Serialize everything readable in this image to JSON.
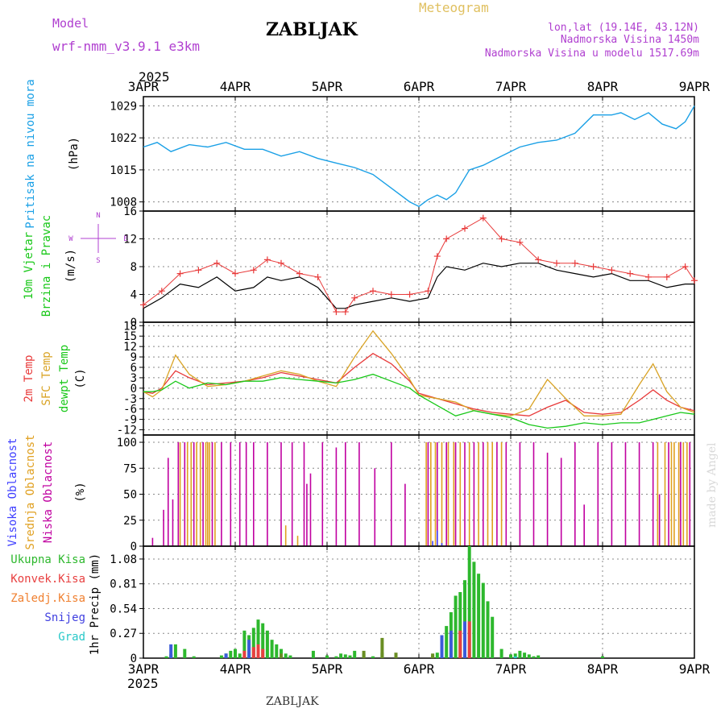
{
  "header": {
    "model_label": "Model",
    "model_value": "wrf-nmm_v3.9.1 e3km",
    "station": "ZABLJAK",
    "meteogram": "Meteogram",
    "lonlat": "lon,lat (19.14E, 43.12N)",
    "altitude": "Nadmorska Visina 1450m",
    "model_altitude": "Nadmorska Visina u modelu 1517.69m",
    "year_top": "2025",
    "year_bottom": "2025",
    "footer_station": "ZABLJAK",
    "watermark": "made by Angel"
  },
  "colors": {
    "pressure": "#1aa0e6",
    "temp2m": "#e83a3a",
    "sfc": "#d9a325",
    "dew": "#19c819",
    "violet": "#b040d0",
    "high": "#4040ff",
    "mid": "#e0a020",
    "low": "#c000a0",
    "grid": "#888888"
  },
  "chart_data": [
    {
      "type": "line",
      "name": "pressure",
      "ylabel_lines": [
        "Pritisak na nivou mora"
      ],
      "unit": "(hPa)",
      "x_labels": [
        "3APR",
        "4APR",
        "5APR",
        "6APR",
        "7APR",
        "8APR",
        "9APR"
      ],
      "yticks": [
        1008,
        1015,
        1022,
        1029
      ],
      "ylim": [
        1006,
        1031
      ],
      "x_days": [
        0,
        0.15,
        0.3,
        0.5,
        0.7,
        0.9,
        1.1,
        1.3,
        1.5,
        1.7,
        1.9,
        2.1,
        2.3,
        2.5,
        2.7,
        2.9,
        3.0,
        3.1,
        3.2,
        3.3,
        3.4,
        3.55,
        3.7,
        3.9,
        4.1,
        4.3,
        4.5,
        4.7,
        4.9,
        5.1,
        5.2,
        5.35,
        5.5,
        5.65,
        5.8,
        5.9,
        6.0
      ],
      "values": [
        1020.0,
        1021.0,
        1019.0,
        1020.5,
        1020.0,
        1021.0,
        1019.5,
        1019.5,
        1018.0,
        1019.0,
        1017.5,
        1016.5,
        1015.5,
        1014.0,
        1011.0,
        1008.0,
        1007.0,
        1008.5,
        1009.5,
        1008.5,
        1010.0,
        1015.0,
        1016.0,
        1018.0,
        1020.0,
        1021.0,
        1021.5,
        1023.0,
        1027.0,
        1027.0,
        1027.5,
        1026.0,
        1027.5,
        1025.0,
        1024.0,
        1025.5,
        1029.0
      ]
    },
    {
      "type": "line",
      "name": "wind",
      "ylabel_lines": [
        "10m Vjetar",
        "Brzina i Pravac"
      ],
      "unit": "(m/s)",
      "yticks": [
        0,
        4,
        8,
        12,
        16
      ],
      "ylim": [
        0,
        16
      ],
      "compass": {
        "n": "N",
        "e": "E",
        "s": "S",
        "w": "W"
      },
      "series": [
        {
          "name": "wind_speed",
          "x_days": [
            0,
            0.2,
            0.4,
            0.6,
            0.8,
            1.0,
            1.2,
            1.35,
            1.5,
            1.7,
            1.9,
            2.1,
            2.2,
            2.3,
            2.5,
            2.7,
            2.9,
            3.1,
            3.2,
            3.3,
            3.5,
            3.7,
            3.9,
            4.1,
            4.3,
            4.5,
            4.7,
            4.9,
            5.1,
            5.3,
            5.5,
            5.7,
            5.9,
            6.0
          ],
          "values": [
            2.0,
            3.5,
            5.5,
            5.0,
            6.5,
            4.5,
            5.0,
            6.5,
            6.0,
            6.5,
            5.0,
            2.0,
            2.0,
            2.5,
            3.0,
            3.5,
            3.0,
            3.5,
            6.5,
            8.0,
            7.5,
            8.5,
            8.0,
            8.5,
            8.5,
            7.5,
            7.0,
            6.5,
            7.0,
            6.0,
            6.0,
            5.0,
            5.5,
            5.5
          ]
        },
        {
          "name": "wind_gust",
          "x_days": [
            0,
            0.2,
            0.4,
            0.6,
            0.8,
            1.0,
            1.2,
            1.35,
            1.5,
            1.7,
            1.9,
            2.1,
            2.2,
            2.3,
            2.5,
            2.7,
            2.9,
            3.1,
            3.2,
            3.3,
            3.5,
            3.7,
            3.9,
            4.1,
            4.3,
            4.5,
            4.7,
            4.9,
            5.1,
            5.3,
            5.5,
            5.7,
            5.9,
            6.0
          ],
          "values": [
            2.5,
            4.5,
            7.0,
            7.5,
            8.5,
            7.0,
            7.5,
            9.0,
            8.5,
            7.0,
            6.5,
            1.5,
            1.5,
            3.5,
            4.5,
            4.0,
            4.0,
            4.5,
            9.5,
            12.0,
            13.5,
            15.0,
            12.0,
            11.5,
            9.0,
            8.5,
            8.5,
            8.0,
            7.5,
            7.0,
            6.5,
            6.5,
            8.0,
            6.0
          ]
        }
      ]
    },
    {
      "type": "line",
      "name": "temperature",
      "ylabel_lines": [
        "2m Temp",
        "SFC Temp",
        "dewpt Temp"
      ],
      "unit": "(C)",
      "yticks": [
        -12,
        -9,
        -6,
        -3,
        0,
        3,
        6,
        9,
        12,
        15,
        18
      ],
      "ylim": [
        -13.5,
        19
      ],
      "series": [
        {
          "name": "2m",
          "x_days": [
            0,
            0.1,
            0.2,
            0.35,
            0.5,
            0.7,
            0.9,
            1.1,
            1.3,
            1.5,
            1.7,
            1.9,
            2.1,
            2.3,
            2.5,
            2.7,
            2.9,
            3.0,
            3.2,
            3.4,
            3.6,
            3.8,
            4.0,
            4.2,
            4.4,
            4.6,
            4.8,
            5.0,
            5.2,
            5.4,
            5.55,
            5.7,
            5.85,
            6.0
          ],
          "values": [
            -1.0,
            -1.5,
            0.0,
            5.0,
            3.0,
            1.0,
            1.5,
            2.0,
            3.0,
            4.5,
            3.5,
            2.5,
            1.5,
            6.0,
            10.0,
            7.0,
            2.0,
            -1.5,
            -3.0,
            -4.5,
            -6.0,
            -7.0,
            -7.5,
            -8.0,
            -5.5,
            -3.5,
            -7.0,
            -7.5,
            -7.0,
            -3.5,
            -0.5,
            -3.5,
            -5.5,
            -6.5
          ]
        },
        {
          "name": "sfc",
          "x_days": [
            0,
            0.1,
            0.2,
            0.35,
            0.5,
            0.7,
            0.9,
            1.1,
            1.3,
            1.5,
            1.7,
            1.9,
            2.1,
            2.3,
            2.5,
            2.7,
            2.9,
            3.0,
            3.2,
            3.4,
            3.6,
            3.8,
            4.0,
            4.2,
            4.4,
            4.6,
            4.8,
            5.0,
            5.2,
            5.4,
            5.55,
            5.7,
            5.85,
            6.0
          ],
          "values": [
            -1.0,
            -2.5,
            -0.5,
            9.5,
            4.0,
            0.5,
            1.0,
            2.0,
            3.5,
            5.0,
            4.0,
            2.0,
            0.5,
            9.0,
            16.5,
            10.0,
            2.5,
            -2.0,
            -3.0,
            -4.0,
            -6.5,
            -7.5,
            -8.0,
            -6.0,
            2.5,
            -3.0,
            -8.0,
            -8.0,
            -7.5,
            1.0,
            7.0,
            -1.0,
            -5.5,
            -7.0
          ]
        },
        {
          "name": "dew",
          "x_days": [
            0,
            0.1,
            0.2,
            0.35,
            0.5,
            0.7,
            0.9,
            1.1,
            1.3,
            1.5,
            1.7,
            1.9,
            2.1,
            2.3,
            2.5,
            2.7,
            2.9,
            3.0,
            3.2,
            3.4,
            3.6,
            3.8,
            4.0,
            4.2,
            4.4,
            4.6,
            4.8,
            5.0,
            5.2,
            5.4,
            5.55,
            5.7,
            5.85,
            6.0
          ],
          "values": [
            -1.0,
            -1.0,
            -0.5,
            2.0,
            0.0,
            1.5,
            1.0,
            2.0,
            2.0,
            3.0,
            2.5,
            2.0,
            1.5,
            2.5,
            4.0,
            2.0,
            0.0,
            -2.0,
            -5.0,
            -8.0,
            -6.5,
            -7.5,
            -8.5,
            -10.5,
            -11.5,
            -11.0,
            -10.0,
            -10.5,
            -10.0,
            -10.0,
            -9.0,
            -8.0,
            -7.0,
            -7.5
          ]
        }
      ]
    },
    {
      "type": "bar",
      "name": "cloudiness",
      "ylabel_lines": [
        "Visoka Oblacnost",
        "Srednja Oblacnost",
        "Niska Oblacnost"
      ],
      "unit": "(%)",
      "yticks": [
        0,
        25,
        50,
        75,
        100
      ],
      "ylim": [
        0,
        107
      ],
      "series": [
        {
          "name": "low",
          "x_days": [
            0.1,
            0.22,
            0.27,
            0.32,
            0.38,
            0.45,
            0.55,
            0.65,
            0.75,
            0.85,
            0.95,
            1.05,
            1.12,
            1.2,
            1.35,
            1.5,
            1.62,
            1.75,
            1.78,
            1.82,
            1.95,
            2.1,
            2.2,
            2.35,
            2.52,
            2.7,
            2.85,
            3.1,
            3.2,
            3.3,
            3.4,
            3.5,
            3.6,
            3.7,
            3.85,
            3.95,
            4.1,
            4.25,
            4.4,
            4.55,
            4.7,
            4.8,
            4.95,
            5.1,
            5.25,
            5.4,
            5.55,
            5.62,
            5.72,
            5.85,
            5.95
          ],
          "values": [
            8,
            35,
            85,
            45,
            100,
            100,
            100,
            100,
            100,
            100,
            100,
            100,
            100,
            100,
            100,
            100,
            100,
            100,
            60,
            70,
            100,
            95,
            100,
            100,
            75,
            100,
            60,
            100,
            100,
            100,
            100,
            100,
            100,
            100,
            100,
            100,
            100,
            100,
            90,
            85,
            100,
            40,
            100,
            100,
            100,
            100,
            100,
            50,
            100,
            100,
            100
          ]
        },
        {
          "name": "mid",
          "x_days": [
            0.4,
            0.48,
            0.52,
            0.58,
            0.62,
            0.68,
            0.7,
            0.72,
            0.78,
            1.55,
            1.68,
            3.08,
            3.13,
            3.18,
            3.25,
            3.32,
            3.38,
            3.45,
            3.55,
            3.65,
            3.75,
            3.8,
            3.9,
            5.6,
            5.68,
            5.75,
            5.78,
            5.83,
            5.88,
            5.92
          ],
          "values": [
            100,
            100,
            100,
            100,
            100,
            100,
            100,
            100,
            100,
            20,
            10,
            100,
            100,
            100,
            100,
            100,
            100,
            100,
            100,
            100,
            100,
            100,
            100,
            100,
            100,
            100,
            100,
            100,
            100,
            100
          ]
        },
        {
          "name": "high",
          "x_days": [
            3.15,
            3.2,
            3.25
          ],
          "values": [
            5,
            15,
            3
          ]
        }
      ]
    },
    {
      "type": "bar",
      "name": "precipitation",
      "legend": [
        "Ukupna Kisa",
        "Konvek.Kisa",
        "Zaledj.Kisa",
        "Snijeg",
        "Grad"
      ],
      "ylabel_lines": [
        "1hr Precip"
      ],
      "unit": "(mm)",
      "yticks": [
        0,
        0.27,
        0.54,
        0.81,
        1.08
      ],
      "ylim": [
        0,
        1.22
      ],
      "series": [
        {
          "name": "total",
          "x_days": [
            0.25,
            0.3,
            0.35,
            0.45,
            0.55,
            0.85,
            0.9,
            0.95,
            1.0,
            1.05,
            1.1,
            1.15,
            1.2,
            1.25,
            1.3,
            1.35,
            1.4,
            1.45,
            1.5,
            1.55,
            1.6,
            1.85,
            2.0,
            2.1,
            2.15,
            2.2,
            2.25,
            2.3,
            2.4,
            2.5,
            2.6,
            2.75,
            3.15,
            3.2,
            3.25,
            3.3,
            3.35,
            3.4,
            3.45,
            3.5,
            3.55,
            3.6,
            3.65,
            3.7,
            3.75,
            3.8,
            3.9,
            4.0,
            4.05,
            4.1,
            4.15,
            4.2,
            4.25,
            4.3,
            5.0
          ],
          "values": [
            0.02,
            0.04,
            0.15,
            0.1,
            0.02,
            0.03,
            0.05,
            0.08,
            0.1,
            0.05,
            0.3,
            0.25,
            0.33,
            0.42,
            0.38,
            0.3,
            0.2,
            0.15,
            0.1,
            0.05,
            0.03,
            0.08,
            0.03,
            0.02,
            0.05,
            0.04,
            0.03,
            0.08,
            0.05,
            0.02,
            0.06,
            0.02,
            0.03,
            0.06,
            0.22,
            0.35,
            0.5,
            0.68,
            0.72,
            0.85,
            1.22,
            1.05,
            0.92,
            0.82,
            0.62,
            0.45,
            0.1,
            0.04,
            0.05,
            0.08,
            0.06,
            0.04,
            0.02,
            0.03,
            0.02
          ]
        },
        {
          "name": "convective",
          "x_days": [
            1.1,
            1.2,
            1.25,
            1.3,
            3.45,
            3.55
          ],
          "values": [
            0.08,
            0.12,
            0.15,
            0.1,
            0.3,
            0.4
          ]
        },
        {
          "name": "frozen",
          "x_days": [
            1.5,
            2.4,
            2.6,
            2.75,
            3.15
          ],
          "values": [
            0.05,
            0.08,
            0.22,
            0.06,
            0.05
          ]
        },
        {
          "name": "snow",
          "x_days": [
            0.3,
            0.9,
            1.15,
            3.25,
            3.35,
            3.5
          ],
          "values": [
            0.15,
            0.05,
            0.2,
            0.25,
            0.3,
            0.4
          ]
        },
        {
          "name": "hail",
          "x_days": [
            4.05
          ],
          "values": [
            0.02
          ]
        }
      ]
    }
  ]
}
